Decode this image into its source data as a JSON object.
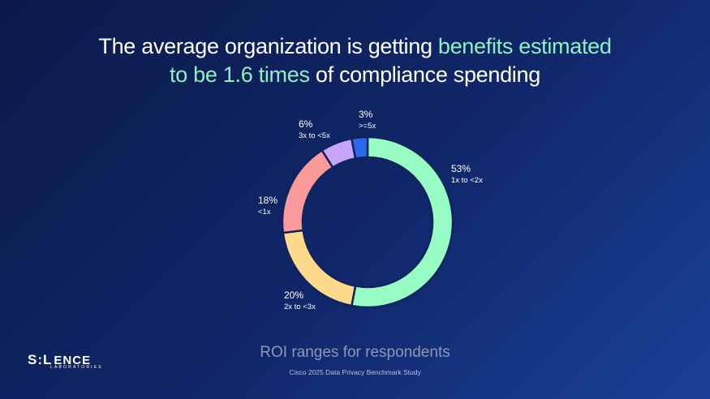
{
  "header": {
    "title_part1": "The average organization is getting ",
    "title_highlight1": "benefits estimated",
    "title_highlight2": "to be 1.6 times",
    "title_part2": " of compliance spending"
  },
  "colors": {
    "highlight": "#8ff0c0"
  },
  "chart_data": {
    "type": "pie",
    "title": "ROI ranges for respondents",
    "source": "Cisco 2025 Data Privacy Benchmark Study",
    "slices": [
      {
        "pct_label": "53%",
        "label": "1x to <2x",
        "value": 53,
        "color": "#97fbc4"
      },
      {
        "pct_label": "20%",
        "label": "2x to <3x",
        "value": 20,
        "color": "#fdd98c"
      },
      {
        "pct_label": "18%",
        "label": "<1x",
        "value": 18,
        "color": "#fb9a9a"
      },
      {
        "pct_label": "6%",
        "label": "3x to <5x",
        "value": 6,
        "color": "#c6a5fa"
      },
      {
        "pct_label": "3%",
        "label": ">=5x",
        "value": 3,
        "color": "#2a68ee"
      }
    ]
  },
  "logo": {
    "letter1": "S",
    "letter2": ":",
    "letter3": "L",
    "rest": "ENCE",
    "subtitle": "LABORATORIES"
  }
}
